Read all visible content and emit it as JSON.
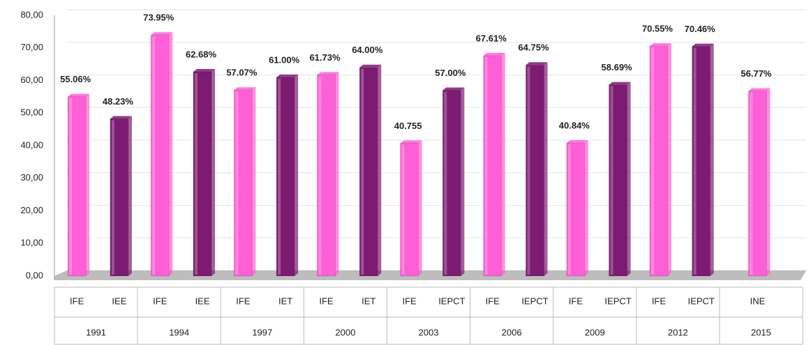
{
  "chart_data": {
    "type": "bar",
    "ylim": [
      0,
      80
    ],
    "yticks": [
      {
        "value": 0,
        "label": "0,00"
      },
      {
        "value": 10,
        "label": "10,00"
      },
      {
        "value": 20,
        "label": "20,00"
      },
      {
        "value": 30,
        "label": "30,00"
      },
      {
        "value": 40,
        "label": "40,00"
      },
      {
        "value": 50,
        "label": "50,00"
      },
      {
        "value": 60,
        "label": "60,00"
      },
      {
        "value": 70,
        "label": "70,00"
      },
      {
        "value": 80,
        "label": "80,00"
      }
    ],
    "grid": true,
    "groups": [
      {
        "label": "1991",
        "bars": [
          {
            "label": "IFE",
            "value": 55.06,
            "value_label": "55.06%",
            "color": "#ff5fd6"
          },
          {
            "label": "IEE",
            "value": 48.23,
            "value_label": "48.23%",
            "color": "#7d1a72"
          }
        ]
      },
      {
        "label": "1994",
        "bars": [
          {
            "label": "IFE",
            "value": 73.95,
            "value_label": "73.95%",
            "color": "#ff5fd6"
          },
          {
            "label": "IEE",
            "value": 62.68,
            "value_label": "62.68%",
            "color": "#7d1a72"
          }
        ]
      },
      {
        "label": "1997",
        "bars": [
          {
            "label": "IFE",
            "value": 57.07,
            "value_label": "57.07%",
            "color": "#ff5fd6"
          },
          {
            "label": "IET",
            "value": 61.0,
            "value_label": "61.00%",
            "color": "#7d1a72"
          }
        ]
      },
      {
        "label": "2000",
        "bars": [
          {
            "label": "IFE",
            "value": 61.73,
            "value_label": "61.73%",
            "color": "#ff5fd6"
          },
          {
            "label": "IET",
            "value": 64.0,
            "value_label": "64.00%",
            "color": "#7d1a72"
          }
        ]
      },
      {
        "label": "2003",
        "bars": [
          {
            "label": "IFE",
            "value": 40.755,
            "value_label": "40.755",
            "color": "#ff5fd6"
          },
          {
            "label": "IEPCT",
            "value": 57.0,
            "value_label": "57.00%",
            "color": "#7d1a72"
          }
        ]
      },
      {
        "label": "2006",
        "bars": [
          {
            "label": "IFE",
            "value": 67.61,
            "value_label": "67.61%",
            "color": "#ff5fd6"
          },
          {
            "label": "IEPCT",
            "value": 64.75,
            "value_label": "64.75%",
            "color": "#7d1a72"
          }
        ]
      },
      {
        "label": "2009",
        "bars": [
          {
            "label": "IFE",
            "value": 40.84,
            "value_label": "40.84%",
            "color": "#ff5fd6"
          },
          {
            "label": "IEPCT",
            "value": 58.69,
            "value_label": "58.69%",
            "color": "#7d1a72"
          }
        ]
      },
      {
        "label": "2012",
        "bars": [
          {
            "label": "IFE",
            "value": 70.55,
            "value_label": "70.55%",
            "color": "#ff5fd6"
          },
          {
            "label": "IEPCT",
            "value": 70.46,
            "value_label": "70.46%",
            "color": "#7d1a72"
          }
        ]
      },
      {
        "label": "2015",
        "bars": [
          {
            "label": "INE",
            "value": 56.77,
            "value_label": "56.77%",
            "color": "#ff5fd6"
          }
        ]
      }
    ]
  }
}
